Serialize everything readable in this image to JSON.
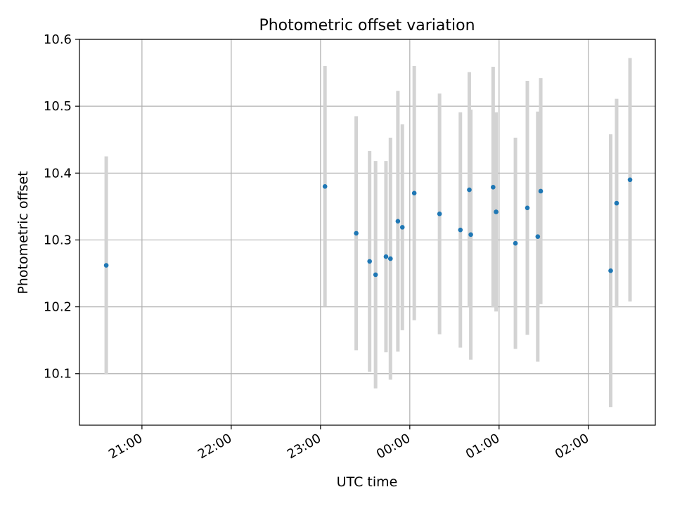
{
  "chart_data": {
    "type": "scatter",
    "title": "Photometric offset variation",
    "xlabel": "UTC time",
    "ylabel": "Photometric offset",
    "x_unit": "UTC time (HH:MM), observation night crossing midnight",
    "xlim": [
      "20:18",
      "02:45"
    ],
    "ylim": [
      10.023,
      10.6
    ],
    "x_ticks": [
      "21:00",
      "22:00",
      "23:00",
      "00:00",
      "01:00",
      "02:00"
    ],
    "y_ticks": [
      10.1,
      10.2,
      10.3,
      10.4,
      10.5,
      10.6
    ],
    "y_tick_labels": [
      "10.1",
      "10.2",
      "10.3",
      "10.4",
      "10.5",
      "10.6"
    ],
    "grid": true,
    "point_color": "#1f77b4",
    "errorbar_color": "#d3d3d3",
    "series": [
      {
        "points": [
          {
            "time": "20:36",
            "y": 10.262,
            "err": 0.163
          },
          {
            "time": "23:03",
            "y": 10.38,
            "err": 0.18
          },
          {
            "time": "23:24",
            "y": 10.31,
            "err": 0.175
          },
          {
            "time": "23:33",
            "y": 10.268,
            "err": 0.165
          },
          {
            "time": "23:37",
            "y": 10.248,
            "err": 0.17
          },
          {
            "time": "23:44",
            "y": 10.275,
            "err": 0.143
          },
          {
            "time": "23:47",
            "y": 10.272,
            "err": 0.181
          },
          {
            "time": "23:52",
            "y": 10.328,
            "err": 0.195
          },
          {
            "time": "23:55",
            "y": 10.319,
            "err": 0.154
          },
          {
            "time": "00:03",
            "y": 10.37,
            "err": 0.19
          },
          {
            "time": "00:20",
            "y": 10.339,
            "err": 0.18
          },
          {
            "time": "00:34",
            "y": 10.315,
            "err": 0.176
          },
          {
            "time": "00:40",
            "y": 10.375,
            "err": 0.176
          },
          {
            "time": "00:41",
            "y": 10.308,
            "err": 0.187
          },
          {
            "time": "00:56",
            "y": 10.379,
            "err": 0.18
          },
          {
            "time": "00:58",
            "y": 10.342,
            "err": 0.149
          },
          {
            "time": "01:11",
            "y": 10.295,
            "err": 0.158
          },
          {
            "time": "01:19",
            "y": 10.348,
            "err": 0.19
          },
          {
            "time": "01:26",
            "y": 10.305,
            "err": 0.187
          },
          {
            "time": "01:28",
            "y": 10.373,
            "err": 0.169
          },
          {
            "time": "02:15",
            "y": 10.254,
            "err": 0.204
          },
          {
            "time": "02:19",
            "y": 10.355,
            "err": 0.156
          },
          {
            "time": "02:28",
            "y": 10.39,
            "err": 0.182
          }
        ]
      }
    ]
  }
}
